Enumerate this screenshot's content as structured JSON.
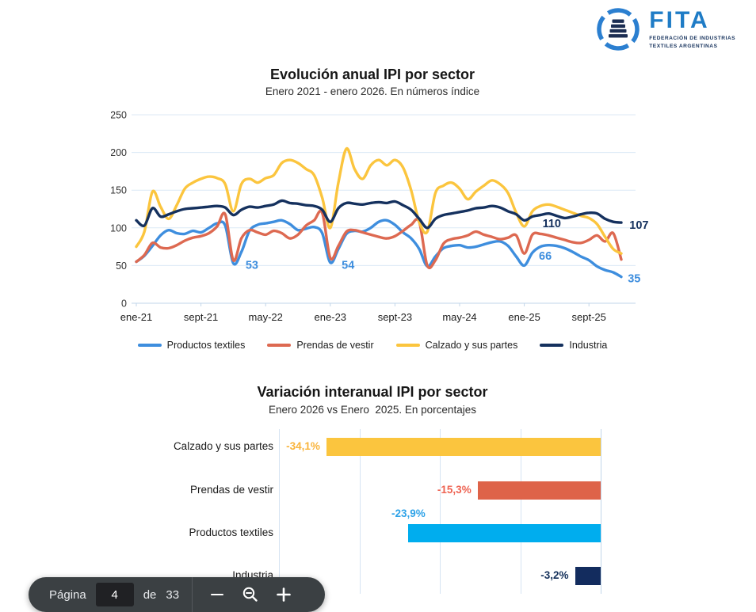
{
  "logo": {
    "word": "FITA",
    "tagline_line1": "FEDERACIÓN DE INDUSTRIAS",
    "tagline_line2": "TEXTILES ARGENTINAS"
  },
  "toolbar": {
    "page_label": "Página",
    "page_value": "4",
    "of_label": "de",
    "total_pages": "33"
  },
  "chart_data": [
    {
      "type": "line",
      "title": "Evolución anual IPI por sector",
      "subtitle": "Enero 2021 - enero 2026. En números índice",
      "x_tick_labels": [
        "ene-21",
        "sept-21",
        "may-22",
        "ene-23",
        "sept-23",
        "may-24",
        "ene-25",
        "sept-25"
      ],
      "x_tick_positions": [
        0,
        8,
        16,
        24,
        32,
        40,
        48,
        56
      ],
      "x_range_months": 60,
      "ylim": [
        0,
        250
      ],
      "y_ticks": [
        0,
        50,
        100,
        150,
        200,
        250
      ],
      "grid": true,
      "legend_position": "bottom",
      "series": [
        {
          "name": "Productos textiles",
          "color": "#3E8EDE",
          "values": [
            55,
            63,
            76,
            90,
            97,
            93,
            92,
            96,
            94,
            100,
            106,
            103,
            53,
            68,
            96,
            104,
            106,
            108,
            110,
            105,
            97,
            99,
            101,
            93,
            54,
            72,
            92,
            96,
            95,
            100,
            108,
            110,
            104,
            94,
            86,
            72,
            49,
            62,
            73,
            76,
            77,
            74,
            75,
            78,
            81,
            82,
            76,
            62,
            50,
            67,
            75,
            77,
            76,
            73,
            68,
            62,
            57,
            49,
            44,
            41,
            35
          ]
        },
        {
          "name": "Prendas de vestir",
          "color": "#DD6951",
          "values": [
            55,
            64,
            80,
            74,
            73,
            77,
            83,
            87,
            89,
            93,
            102,
            118,
            57,
            86,
            97,
            94,
            91,
            96,
            93,
            86,
            91,
            103,
            110,
            120,
            60,
            76,
            95,
            97,
            94,
            91,
            88,
            86,
            89,
            96,
            104,
            108,
            50,
            57,
            79,
            85,
            87,
            90,
            95,
            91,
            88,
            85,
            87,
            90,
            66,
            91,
            92,
            90,
            87,
            84,
            81,
            80,
            84,
            90,
            82,
            93,
            58
          ]
        },
        {
          "name": "Calzado y sus partes",
          "color": "#FBC53E",
          "values": [
            75,
            95,
            148,
            128,
            112,
            130,
            152,
            160,
            165,
            168,
            166,
            158,
            122,
            158,
            165,
            160,
            166,
            170,
            186,
            190,
            186,
            178,
            170,
            140,
            100,
            160,
            205,
            178,
            165,
            183,
            190,
            183,
            190,
            180,
            150,
            108,
            95,
            146,
            156,
            160,
            152,
            138,
            148,
            156,
            163,
            158,
            146,
            120,
            102,
            122,
            129,
            131,
            128,
            124,
            120,
            116,
            113,
            105,
            88,
            72,
            66
          ]
        },
        {
          "name": "Industria",
          "color": "#15315E",
          "values": [
            110,
            103,
            126,
            115,
            118,
            122,
            125,
            126,
            127,
            128,
            129,
            127,
            117,
            124,
            128,
            127,
            129,
            131,
            136,
            133,
            132,
            130,
            129,
            124,
            108,
            126,
            133,
            132,
            131,
            133,
            134,
            133,
            135,
            130,
            124,
            112,
            100,
            112,
            117,
            119,
            121,
            123,
            126,
            127,
            129,
            127,
            122,
            118,
            110,
            115,
            117,
            119,
            116,
            113,
            115,
            118,
            120,
            119,
            112,
            108,
            107
          ]
        }
      ],
      "annotations": [
        {
          "text": "53",
          "month": 14.3,
          "value": 51,
          "color": "#3E8EDE"
        },
        {
          "text": "54",
          "month": 26.2,
          "value": 51,
          "color": "#3E8EDE"
        },
        {
          "text": "66",
          "month": 50.6,
          "value": 63,
          "color": "#3E8EDE"
        },
        {
          "text": "35",
          "month": 61.6,
          "value": 33,
          "color": "#3E8EDE"
        },
        {
          "text": "110",
          "month": 51.4,
          "value": 106,
          "color": "#15315E"
        },
        {
          "text": "107",
          "month": 62.2,
          "value": 104,
          "color": "#15315E"
        }
      ]
    },
    {
      "type": "bar",
      "orientation": "horizontal",
      "title": "Variación interanual IPI por sector",
      "subtitle": "Enero 2026 vs Enero  2025. En porcentajes",
      "categories": [
        "Calzado y sus partes",
        "Prendas de vestir",
        "Productos textiles",
        "Industria"
      ],
      "values": [
        -34.1,
        -15.3,
        -23.9,
        -3.2
      ],
      "value_labels": [
        "-34,1%",
        "-15,3%",
        "-23,9%",
        "-3,2%"
      ],
      "colors": [
        "#FBC53E",
        "#DE6349",
        "#00ADEE",
        "#132C5E"
      ],
      "label_colors": [
        "#F9B43B",
        "#EE6352",
        "#2FA3E8",
        "#16325C"
      ],
      "label_positions": [
        "left",
        "left",
        "above",
        "left"
      ],
      "xlim": [
        -40,
        0
      ],
      "grid_interval": 10,
      "grid": true
    }
  ]
}
